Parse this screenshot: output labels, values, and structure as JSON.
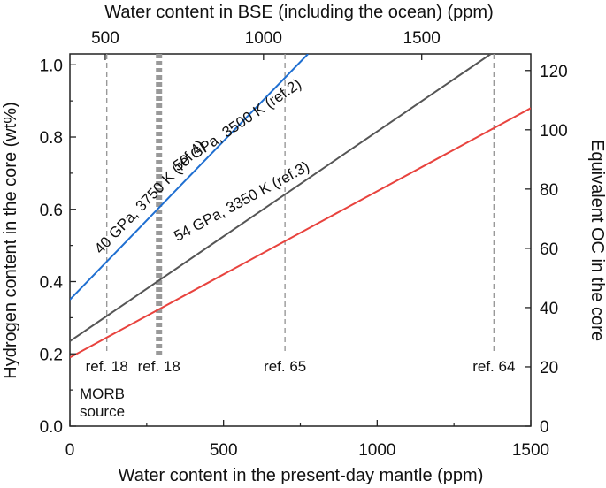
{
  "chart_data": {
    "type": "line",
    "xlabel": "Water content in the present-day mantle (ppm)",
    "ylabel": "Hydrogen content in the core (wt%)",
    "top_xlabel": "Water content in BSE (including the ocean) (ppm)",
    "right_ylabel": "Equivalent OC in the core",
    "xlim": [
      0,
      1500
    ],
    "ylim": [
      0,
      1.03
    ],
    "right_ylim": [
      0,
      125.6
    ],
    "x_ticks": [
      0,
      500,
      1000,
      1500
    ],
    "y_ticks": [
      0.0,
      0.2,
      0.4,
      0.6,
      0.8,
      1.0
    ],
    "right_y_ticks": [
      0,
      20,
      40,
      60,
      80,
      100,
      120
    ],
    "top_x_ticks": [
      500,
      1000,
      1500
    ],
    "top_x_positions": [
      115,
      630,
      1145
    ],
    "x_tick_labels": [
      "0",
      "500",
      "1000",
      "1500"
    ],
    "y_tick_labels": [
      "0.0",
      "0.2",
      "0.4",
      "0.6",
      "0.8",
      "1.0"
    ],
    "right_y_tick_labels": [
      "0",
      "20",
      "40",
      "60",
      "80",
      "100",
      "120"
    ],
    "top_x_tick_labels": [
      "500",
      "1000",
      "1500"
    ],
    "series": [
      {
        "name": "40 GPa, 3750 K (ref.4)",
        "color": "#1f6fd1",
        "x": [
          0,
          775
        ],
        "y": [
          0.35,
          1.03
        ]
      },
      {
        "name": "50 GPa, 3500 K (ref.2)",
        "color": "#555555",
        "x": [
          0,
          1370
        ],
        "y": [
          0.235,
          1.03
        ]
      },
      {
        "name": "54 GPa, 3350 K (ref.3)",
        "color": "#e8433e",
        "x": [
          0,
          1500
        ],
        "y": [
          0.19,
          0.88
        ]
      }
    ],
    "reference_lines": [
      {
        "x": 120,
        "label": "ref. 18",
        "style": "dashed"
      },
      {
        "x": 290,
        "label": "ref. 18",
        "style": "thick-dotted"
      },
      {
        "x": 700,
        "label": "ref. 65",
        "style": "dashed"
      },
      {
        "x": 1380,
        "label": "ref. 64",
        "style": "dashed"
      }
    ],
    "annotations": [
      "MORB",
      "source"
    ],
    "grid": false
  }
}
